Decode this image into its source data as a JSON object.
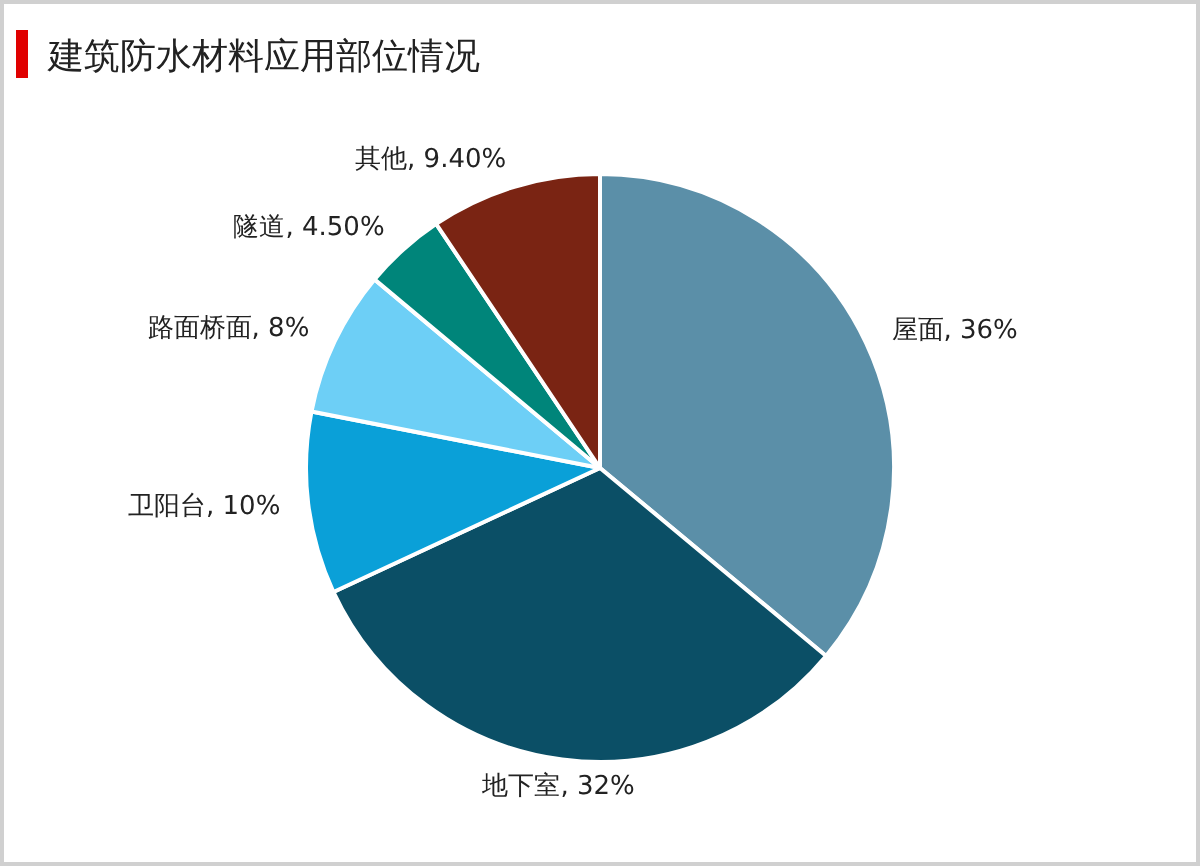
{
  "chart_data": {
    "type": "pie",
    "title": "建筑防水材料应用部位情况",
    "categories": [
      "屋面",
      "地下室",
      "卫阳台",
      "路面桥面",
      "隧道",
      "其他"
    ],
    "values": [
      36,
      32,
      10,
      8,
      4.5,
      9.4
    ],
    "value_labels": [
      "36%",
      "32%",
      "10%",
      "8%",
      "4.50%",
      "9.40%"
    ],
    "colors": [
      "#5b8fa8",
      "#0b4f66",
      "#0aa0d8",
      "#6dcff6",
      "#00857a",
      "#7a2413"
    ],
    "legend": false
  }
}
